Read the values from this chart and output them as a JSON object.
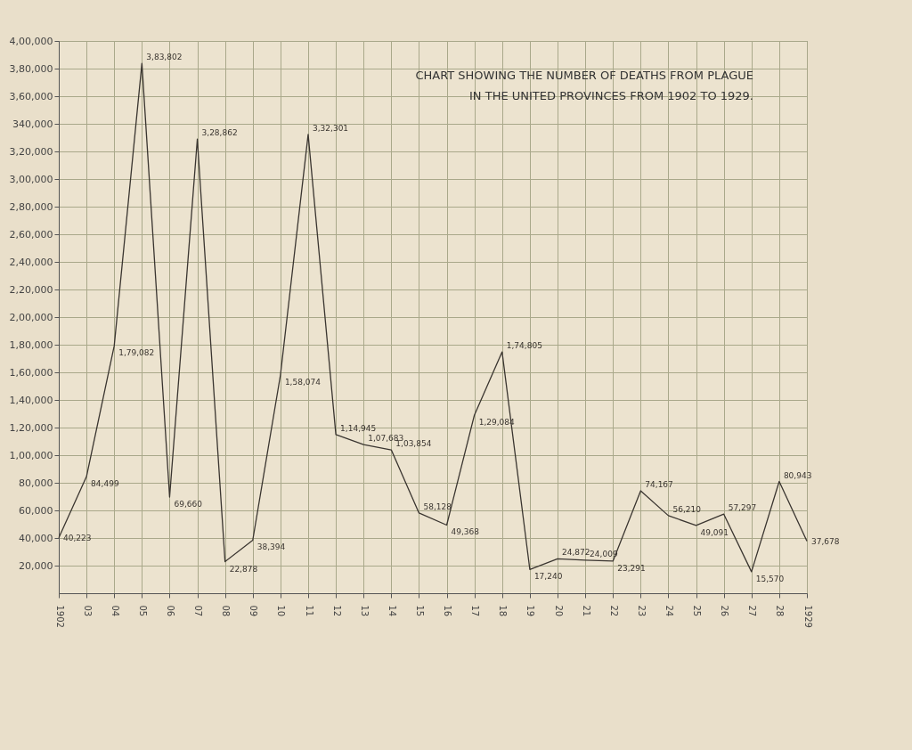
{
  "chart_data": {
    "type": "line",
    "title": "CHART SHOWING THE NUMBER OF DEATHS FROM PLAGUE",
    "subtitle": "IN THE UNITED PROVINCES FROM 1902 TO 1929.",
    "categories": [
      "1902",
      "03",
      "04",
      "05",
      "06",
      "07",
      "08",
      "09",
      "10",
      "11",
      "12",
      "13",
      "14",
      "15",
      "16",
      "17",
      "18",
      "19",
      "20",
      "21",
      "22",
      "23",
      "24",
      "25",
      "26",
      "27",
      "28",
      "1929"
    ],
    "values": [
      40223,
      84499,
      179082,
      383802,
      69660,
      328862,
      22878,
      38394,
      158074,
      332301,
      114945,
      107683,
      103854,
      58128,
      49368,
      129084,
      174805,
      17240,
      24872,
      24009,
      23291,
      74167,
      56210,
      49091,
      57297,
      15570,
      80943,
      37678
    ],
    "value_labels": [
      "40,223",
      "84,499",
      "1,79,082",
      "3,83,802",
      "69,660",
      "3,28,862",
      "22,878",
      "38,394",
      "1,58,074",
      "3,32,301",
      "1,14,945",
      "1,07,683",
      "1,03,854",
      "58,128",
      "49,368",
      "1,29,084",
      "1,74,805",
      "17,240",
      "24,872",
      "24,009",
      "23,291",
      "74,167",
      "56,210",
      "49,091",
      "57,297",
      "15,570",
      "80,943",
      "37,678"
    ],
    "color": "#3a3530",
    "ylim": [
      0,
      400000
    ],
    "yticks": [
      {
        "value": 20000,
        "label": "20,000"
      },
      {
        "value": 40000,
        "label": "40,000"
      },
      {
        "value": 60000,
        "label": "60,000"
      },
      {
        "value": 80000,
        "label": "80,000"
      },
      {
        "value": 100000,
        "label": "1,00,000"
      },
      {
        "value": 120000,
        "label": "1,20,000"
      },
      {
        "value": 140000,
        "label": "1,40,000"
      },
      {
        "value": 160000,
        "label": "1,60,000"
      },
      {
        "value": 180000,
        "label": "1,80,000"
      },
      {
        "value": 200000,
        "label": "2,00,000"
      },
      {
        "value": 220000,
        "label": "2,20,000"
      },
      {
        "value": 240000,
        "label": "2,40,000"
      },
      {
        "value": 260000,
        "label": "2,60,000"
      },
      {
        "value": 280000,
        "label": "2,80,000"
      },
      {
        "value": 300000,
        "label": "3,00,000"
      },
      {
        "value": 320000,
        "label": "3,20,000"
      },
      {
        "value": 340000,
        "label": "340,000"
      },
      {
        "value": 360000,
        "label": "3,60,000"
      },
      {
        "value": 380000,
        "label": "3,80,000"
      },
      {
        "value": 400000,
        "label": "4,00,000"
      }
    ],
    "grid": true
  }
}
